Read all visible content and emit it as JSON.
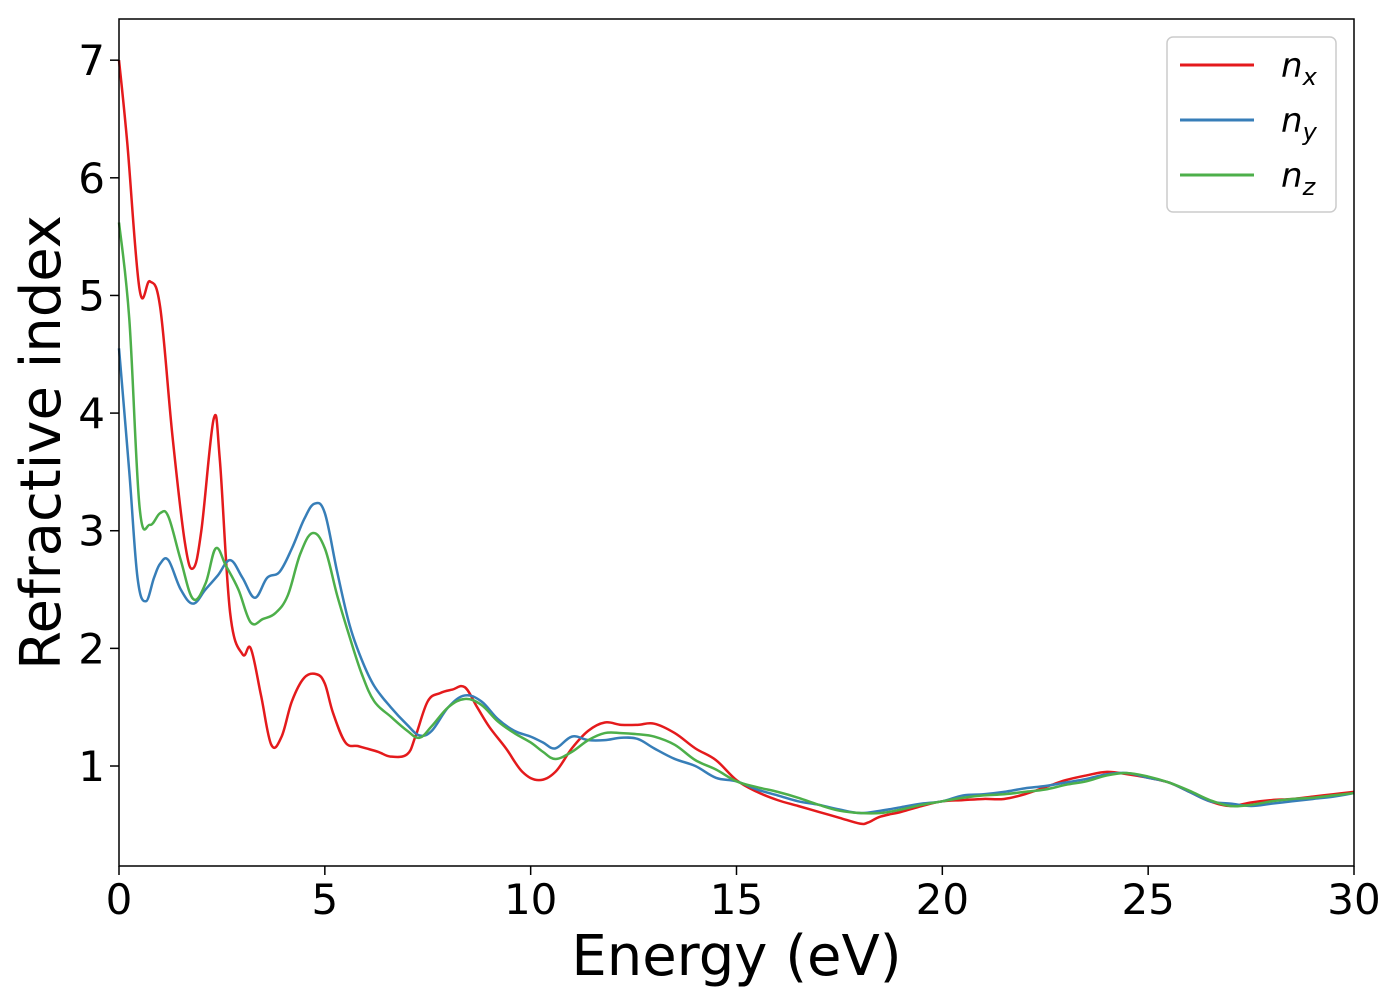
{
  "chart_data": {
    "type": "line",
    "title": "",
    "xlabel": "Energy (eV)",
    "ylabel": "Refractive index",
    "xlim": [
      0,
      30
    ],
    "ylim": [
      0.15,
      7.35
    ],
    "xticks": [
      0,
      5,
      10,
      15,
      20,
      25,
      30
    ],
    "yticks": [
      1,
      2,
      3,
      4,
      5,
      6,
      7
    ],
    "grid": false,
    "legend_position": "top-right",
    "series": [
      {
        "name": "n",
        "subscript": "x",
        "color": "#e41a1c",
        "x": [
          0,
          0.2,
          0.5,
          0.75,
          1.0,
          1.3,
          1.6,
          1.8,
          2.0,
          2.3,
          2.45,
          2.7,
          3.0,
          3.2,
          3.45,
          3.7,
          3.95,
          4.2,
          4.5,
          4.8,
          5.0,
          5.2,
          5.5,
          5.8,
          6.0,
          6.3,
          6.6,
          7.0,
          7.2,
          7.5,
          7.8,
          8.1,
          8.4,
          8.7,
          9.0,
          9.4,
          9.8,
          10.2,
          10.6,
          11.0,
          11.4,
          11.8,
          12.2,
          12.6,
          13.0,
          13.5,
          14.0,
          14.5,
          15.0,
          15.5,
          16.0,
          16.5,
          17.0,
          17.5,
          18.0,
          18.2,
          18.5,
          19.0,
          19.5,
          20.0,
          20.5,
          21.0,
          21.5,
          22.0,
          22.5,
          23.0,
          23.5,
          24.0,
          24.5,
          25.0,
          25.5,
          26.0,
          26.5,
          27.0,
          27.5,
          28.0,
          28.5,
          29.0,
          29.5,
          30.0
        ],
        "y": [
          7.0,
          6.3,
          5.05,
          5.12,
          4.9,
          3.8,
          2.9,
          2.68,
          3.0,
          3.95,
          3.6,
          2.3,
          1.95,
          2.0,
          1.6,
          1.18,
          1.25,
          1.55,
          1.75,
          1.78,
          1.7,
          1.45,
          1.2,
          1.17,
          1.15,
          1.12,
          1.08,
          1.1,
          1.25,
          1.55,
          1.62,
          1.65,
          1.67,
          1.5,
          1.33,
          1.15,
          0.95,
          0.88,
          0.95,
          1.15,
          1.3,
          1.37,
          1.35,
          1.35,
          1.36,
          1.28,
          1.15,
          1.05,
          0.88,
          0.78,
          0.71,
          0.66,
          0.61,
          0.56,
          0.51,
          0.52,
          0.57,
          0.61,
          0.66,
          0.7,
          0.71,
          0.72,
          0.72,
          0.76,
          0.82,
          0.88,
          0.92,
          0.95,
          0.93,
          0.9,
          0.86,
          0.78,
          0.7,
          0.66,
          0.69,
          0.71,
          0.72,
          0.74,
          0.76,
          0.78
        ]
      },
      {
        "name": "n",
        "subscript": "y",
        "color": "#377eb8",
        "x": [
          0,
          0.25,
          0.45,
          0.65,
          0.85,
          1.0,
          1.2,
          1.5,
          1.8,
          2.1,
          2.4,
          2.7,
          3.0,
          3.3,
          3.6,
          3.9,
          4.2,
          4.5,
          4.75,
          5.0,
          5.3,
          5.6,
          5.9,
          6.2,
          6.6,
          7.0,
          7.3,
          7.6,
          8.0,
          8.4,
          8.8,
          9.2,
          9.6,
          10.0,
          10.3,
          10.6,
          11.0,
          11.4,
          11.8,
          12.2,
          12.6,
          13.0,
          13.5,
          14.0,
          14.5,
          15.0,
          15.5,
          16.0,
          16.5,
          17.0,
          17.5,
          18.0,
          18.5,
          19.0,
          19.5,
          20.0,
          20.5,
          21.0,
          21.5,
          22.0,
          22.5,
          23.0,
          23.5,
          24.0,
          24.5,
          25.0,
          25.5,
          26.0,
          26.5,
          27.0,
          27.5,
          28.0,
          28.5,
          29.0,
          29.5,
          30.0
        ],
        "y": [
          4.55,
          3.5,
          2.6,
          2.4,
          2.6,
          2.72,
          2.75,
          2.5,
          2.38,
          2.5,
          2.62,
          2.75,
          2.6,
          2.43,
          2.6,
          2.65,
          2.85,
          3.1,
          3.23,
          3.15,
          2.65,
          2.2,
          1.9,
          1.68,
          1.5,
          1.35,
          1.26,
          1.3,
          1.5,
          1.6,
          1.55,
          1.4,
          1.3,
          1.25,
          1.2,
          1.15,
          1.25,
          1.22,
          1.22,
          1.24,
          1.23,
          1.15,
          1.06,
          1.0,
          0.9,
          0.87,
          0.8,
          0.75,
          0.7,
          0.67,
          0.63,
          0.6,
          0.62,
          0.65,
          0.68,
          0.7,
          0.75,
          0.76,
          0.78,
          0.81,
          0.83,
          0.86,
          0.89,
          0.93,
          0.94,
          0.9,
          0.86,
          0.78,
          0.7,
          0.68,
          0.66,
          0.68,
          0.7,
          0.72,
          0.74,
          0.77
        ]
      },
      {
        "name": "n",
        "subscript": "z",
        "color": "#4daf4a",
        "x": [
          0,
          0.25,
          0.5,
          0.75,
          1.0,
          1.2,
          1.5,
          1.8,
          2.1,
          2.35,
          2.6,
          2.9,
          3.2,
          3.5,
          3.8,
          4.1,
          4.4,
          4.7,
          5.0,
          5.3,
          5.6,
          5.9,
          6.2,
          6.6,
          7.0,
          7.3,
          7.6,
          8.0,
          8.4,
          8.8,
          9.2,
          9.6,
          10.0,
          10.3,
          10.6,
          11.0,
          11.4,
          11.8,
          12.2,
          12.6,
          13.0,
          13.5,
          14.0,
          14.5,
          15.0,
          15.5,
          16.0,
          16.5,
          17.0,
          17.5,
          18.0,
          18.5,
          19.0,
          19.5,
          20.0,
          20.5,
          21.0,
          21.5,
          22.0,
          22.5,
          23.0,
          23.5,
          24.0,
          24.5,
          25.0,
          25.5,
          26.0,
          26.5,
          27.0,
          27.5,
          28.0,
          28.5,
          29.0,
          29.5,
          30.0
        ],
        "y": [
          5.62,
          4.8,
          3.2,
          3.05,
          3.15,
          3.12,
          2.75,
          2.42,
          2.55,
          2.85,
          2.7,
          2.5,
          2.22,
          2.25,
          2.3,
          2.45,
          2.8,
          2.98,
          2.85,
          2.45,
          2.1,
          1.78,
          1.55,
          1.42,
          1.3,
          1.24,
          1.34,
          1.5,
          1.57,
          1.52,
          1.38,
          1.28,
          1.2,
          1.12,
          1.06,
          1.12,
          1.22,
          1.28,
          1.28,
          1.27,
          1.25,
          1.18,
          1.05,
          0.97,
          0.87,
          0.82,
          0.78,
          0.73,
          0.67,
          0.62,
          0.6,
          0.6,
          0.63,
          0.67,
          0.7,
          0.73,
          0.75,
          0.76,
          0.78,
          0.8,
          0.84,
          0.87,
          0.92,
          0.94,
          0.91,
          0.86,
          0.79,
          0.71,
          0.66,
          0.67,
          0.7,
          0.72,
          0.73,
          0.75,
          0.77
        ]
      }
    ]
  }
}
